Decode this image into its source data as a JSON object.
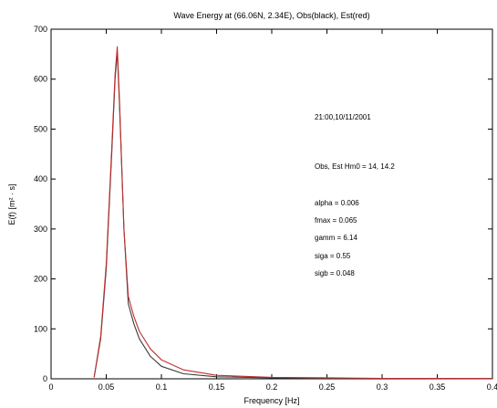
{
  "chart_data": {
    "type": "line",
    "title": "Wave Energy at (66.06N, 2.34E), Obs(black), Est(red)",
    "xlabel": "Frequency [Hz]",
    "ylabel": "E(f) [m² · s]",
    "xlim": [
      0,
      0.4
    ],
    "ylim": [
      0,
      700
    ],
    "x_ticks": [
      "0",
      "0.05",
      "0.1",
      "0.15",
      "0.2",
      "0.25",
      "0.3",
      "0.35",
      "0.4"
    ],
    "y_ticks": [
      "0",
      "100",
      "200",
      "300",
      "400",
      "500",
      "600",
      "700"
    ],
    "grid": false,
    "series": [
      {
        "color": "#3a3a3a",
        "x": [
          0.039,
          0.045,
          0.05,
          0.055,
          0.058,
          0.06,
          0.062,
          0.066,
          0.07,
          0.075,
          0.08,
          0.09,
          0.1,
          0.12,
          0.15,
          0.2,
          0.25,
          0.3,
          0.4
        ],
        "y": [
          3,
          80,
          220,
          450,
          600,
          655,
          550,
          300,
          150,
          110,
          80,
          45,
          25,
          10,
          4,
          2,
          1,
          1,
          0
        ]
      },
      {
        "color": "#c03030",
        "x": [
          0.039,
          0.045,
          0.05,
          0.055,
          0.058,
          0.06,
          0.062,
          0.066,
          0.07,
          0.075,
          0.08,
          0.09,
          0.1,
          0.12,
          0.15,
          0.2,
          0.25,
          0.3,
          0.4
        ],
        "y": [
          3,
          85,
          230,
          460,
          610,
          665,
          560,
          300,
          165,
          125,
          95,
          60,
          38,
          18,
          7,
          3,
          2,
          1,
          1
        ]
      }
    ],
    "annotations": [
      "21:00,10/11/2001",
      "Obs, Est Hm0 = 14, 14.2",
      "alpha = 0.006",
      "fmax = 0.065",
      "gamm = 6.14",
      "siga = 0.55",
      "sigb = 0.048"
    ]
  }
}
